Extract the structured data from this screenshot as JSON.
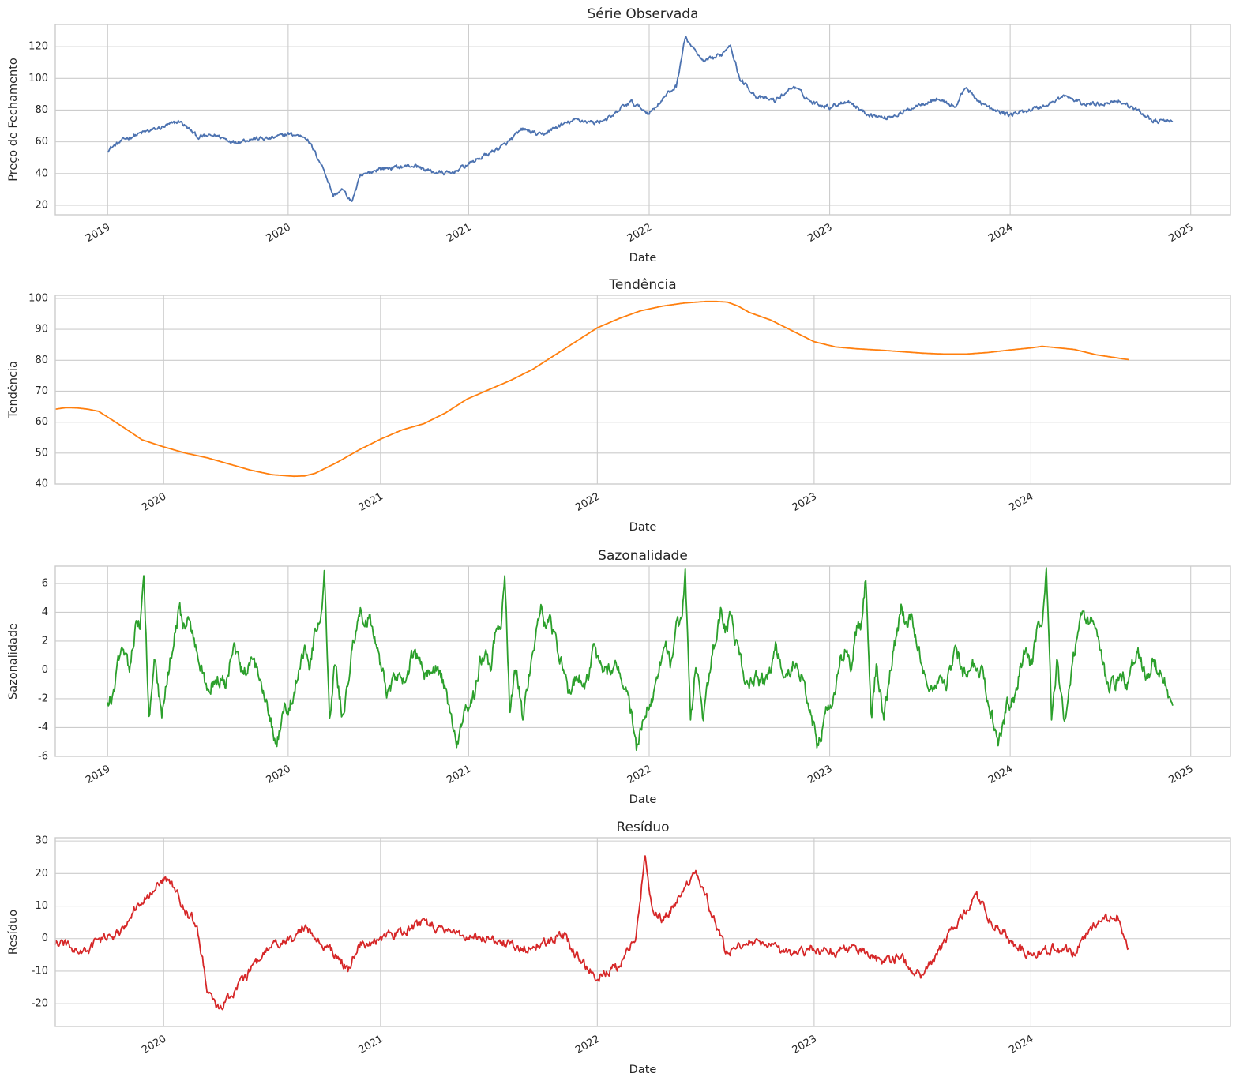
{
  "colors": {
    "background": "#ffffff",
    "grid": "#cccccc",
    "frame": "#cccccc",
    "text": "#262626"
  },
  "chart_data": [
    {
      "type": "line",
      "title": "Série Observada",
      "xlabel": "Date",
      "ylabel": "Preço de Fechamento",
      "color": "#4c72b0",
      "x_ticks": [
        "2019",
        "2020",
        "2021",
        "2022",
        "2023",
        "2024",
        "2025"
      ],
      "y_ticks": [
        20,
        40,
        60,
        80,
        100,
        120
      ],
      "xlim": [
        2018.71,
        2025.22
      ],
      "ylim": [
        14,
        134
      ],
      "grid": true,
      "x_range": [
        2019.0,
        2024.9
      ],
      "x": [
        2019.0,
        2019.1,
        2019.2,
        2019.3,
        2019.4,
        2019.5,
        2019.6,
        2019.7,
        2019.8,
        2019.9,
        2020.0,
        2020.1,
        2020.15,
        2020.2,
        2020.25,
        2020.3,
        2020.35,
        2020.4,
        2020.5,
        2020.6,
        2020.7,
        2020.8,
        2020.9,
        2021.0,
        2021.1,
        2021.2,
        2021.3,
        2021.4,
        2021.5,
        2021.6,
        2021.7,
        2021.8,
        2021.85,
        2021.9,
        2022.0,
        2022.1,
        2022.15,
        2022.2,
        2022.3,
        2022.4,
        2022.45,
        2022.5,
        2022.6,
        2022.7,
        2022.8,
        2022.9,
        2023.0,
        2023.1,
        2023.2,
        2023.3,
        2023.4,
        2023.5,
        2023.6,
        2023.7,
        2023.75,
        2023.8,
        2023.9,
        2024.0,
        2024.1,
        2024.2,
        2024.3,
        2024.4,
        2024.5,
        2024.6,
        2024.7,
        2024.8,
        2024.9
      ],
      "values": [
        55,
        62,
        66,
        69,
        73,
        63,
        64,
        60,
        62,
        62,
        65,
        63,
        53,
        42,
        26,
        30,
        22,
        38,
        43,
        44,
        45,
        41,
        40,
        46,
        52,
        58,
        68,
        64,
        70,
        74,
        72,
        76,
        82,
        85,
        78,
        90,
        95,
        126,
        110,
        115,
        122,
        100,
        88,
        86,
        95,
        85,
        82,
        86,
        78,
        75,
        78,
        84,
        87,
        82,
        95,
        88,
        80,
        77,
        80,
        83,
        89,
        84,
        84,
        86,
        80,
        73,
        73
      ],
      "noise": 2.2
    },
    {
      "type": "line",
      "title": "Tendência",
      "xlabel": "Date",
      "ylabel": "Tendência",
      "color": "#ff7f0e",
      "x_ticks": [
        "2020",
        "2021",
        "2022",
        "2023",
        "2024"
      ],
      "y_ticks": [
        40,
        50,
        60,
        70,
        80,
        90,
        100
      ],
      "xlim": [
        2019.5,
        2024.92
      ],
      "ylim": [
        40,
        101
      ],
      "grid": true,
      "x_range": [
        2019.5,
        2024.45
      ],
      "x": [
        2019.5,
        2019.55,
        2019.6,
        2019.65,
        2019.7,
        2019.8,
        2019.9,
        2020.0,
        2020.1,
        2020.2,
        2020.3,
        2020.4,
        2020.5,
        2020.6,
        2020.65,
        2020.7,
        2020.8,
        2020.9,
        2021.0,
        2021.1,
        2021.2,
        2021.3,
        2021.4,
        2021.5,
        2021.6,
        2021.7,
        2021.8,
        2021.9,
        2022.0,
        2022.1,
        2022.2,
        2022.3,
        2022.4,
        2022.5,
        2022.55,
        2022.6,
        2022.65,
        2022.7,
        2022.8,
        2022.9,
        2023.0,
        2023.1,
        2023.2,
        2023.3,
        2023.4,
        2023.5,
        2023.6,
        2023.7,
        2023.8,
        2023.9,
        2024.0,
        2024.05,
        2024.1,
        2024.2,
        2024.3,
        2024.45
      ],
      "values": [
        64.2,
        64.7,
        64.6,
        64.2,
        63.5,
        59,
        54.3,
        52,
        50,
        48.5,
        46.5,
        44.5,
        43,
        42.5,
        42.6,
        43.5,
        47,
        51,
        54.5,
        57.5,
        59.5,
        63,
        67.5,
        70.5,
        73.5,
        77,
        81.5,
        86,
        90.5,
        93.5,
        96,
        97.5,
        98.5,
        99,
        99,
        98.8,
        97.5,
        95.5,
        93,
        89.5,
        86,
        84.3,
        83.7,
        83.3,
        82.8,
        82.3,
        82,
        82,
        82.5,
        83.3,
        84,
        84.5,
        84.2,
        83.5,
        81.8,
        80.2
      ],
      "noise": 0
    },
    {
      "type": "line",
      "title": "Sazonalidade",
      "xlabel": "Date",
      "ylabel": "Sazonalidade",
      "color": "#2ca02c",
      "x_ticks": [
        "2019",
        "2020",
        "2021",
        "2022",
        "2023",
        "2024",
        "2025"
      ],
      "y_ticks": [
        -6,
        -4,
        -2,
        0,
        2,
        4,
        6
      ],
      "xlim": [
        2018.71,
        2025.22
      ],
      "ylim": [
        -6,
        7.2
      ],
      "grid": true,
      "x_range": [
        2019.0,
        2024.9
      ],
      "period": 1.0,
      "x": [
        0.0,
        0.03,
        0.06,
        0.09,
        0.12,
        0.15,
        0.18,
        0.2,
        0.23,
        0.26,
        0.3,
        0.35,
        0.4,
        0.42,
        0.45,
        0.5,
        0.55,
        0.6,
        0.65,
        0.7,
        0.75,
        0.8,
        0.85,
        0.9,
        0.93,
        0.96,
        0.98,
        1.0
      ],
      "values": [
        -2.5,
        -1.8,
        0.5,
        1.5,
        0.2,
        2.8,
        3.2,
        6.5,
        -3.4,
        0.5,
        -3.4,
        1.0,
        4.4,
        3.0,
        3.5,
        1.0,
        -1.5,
        -0.5,
        -1.0,
        1.5,
        -0.5,
        0.5,
        -0.5,
        -3.0,
        -5.3,
        -4.0,
        -2.5,
        -2.6
      ],
      "noise": 0.9
    },
    {
      "type": "line",
      "title": "Resíduo",
      "xlabel": "Date",
      "ylabel": "Resíduo",
      "color": "#d62728",
      "x_ticks": [
        "2020",
        "2021",
        "2022",
        "2023",
        "2024"
      ],
      "y_ticks": [
        -20,
        -10,
        0,
        10,
        20,
        30
      ],
      "xlim": [
        2019.5,
        2024.92
      ],
      "ylim": [
        -27,
        31
      ],
      "grid": true,
      "x_range": [
        2019.5,
        2024.45
      ],
      "x": [
        2019.5,
        2019.55,
        2019.6,
        2019.65,
        2019.7,
        2019.75,
        2019.8,
        2019.85,
        2019.9,
        2019.95,
        2020.0,
        2020.05,
        2020.1,
        2020.15,
        2020.2,
        2020.25,
        2020.3,
        2020.35,
        2020.4,
        2020.5,
        2020.6,
        2020.65,
        2020.7,
        2020.8,
        2020.85,
        2020.9,
        2021.0,
        2021.1,
        2021.2,
        2021.3,
        2021.4,
        2021.5,
        2021.6,
        2021.7,
        2021.8,
        2021.85,
        2021.9,
        2022.0,
        2022.1,
        2022.15,
        2022.18,
        2022.22,
        2022.25,
        2022.3,
        2022.35,
        2022.4,
        2022.45,
        2022.5,
        2022.55,
        2022.6,
        2022.7,
        2022.8,
        2022.9,
        2023.0,
        2023.1,
        2023.2,
        2023.3,
        2023.4,
        2023.5,
        2023.6,
        2023.7,
        2023.75,
        2023.8,
        2023.9,
        2024.0,
        2024.1,
        2024.15,
        2024.2,
        2024.3,
        2024.4,
        2024.45
      ],
      "values": [
        -1,
        -2,
        -4,
        -4,
        0,
        0,
        2,
        8,
        12,
        15,
        18,
        16,
        8,
        5,
        -15,
        -22,
        -18,
        -14,
        -10,
        -2,
        0,
        4,
        0,
        -5,
        -10,
        -2,
        0,
        2,
        5,
        2,
        1,
        0,
        -2,
        -3,
        0,
        1,
        -5,
        -12,
        -8,
        -3,
        2,
        25,
        10,
        5,
        10,
        14,
        21,
        14,
        3,
        -5,
        0,
        -3,
        -5,
        -3,
        -4,
        -3,
        -7,
        -6,
        -12,
        -1,
        8,
        14,
        6,
        0,
        -5,
        -3,
        -4,
        -4,
        5,
        7,
        -3
      ],
      "noise": 2.5
    }
  ]
}
